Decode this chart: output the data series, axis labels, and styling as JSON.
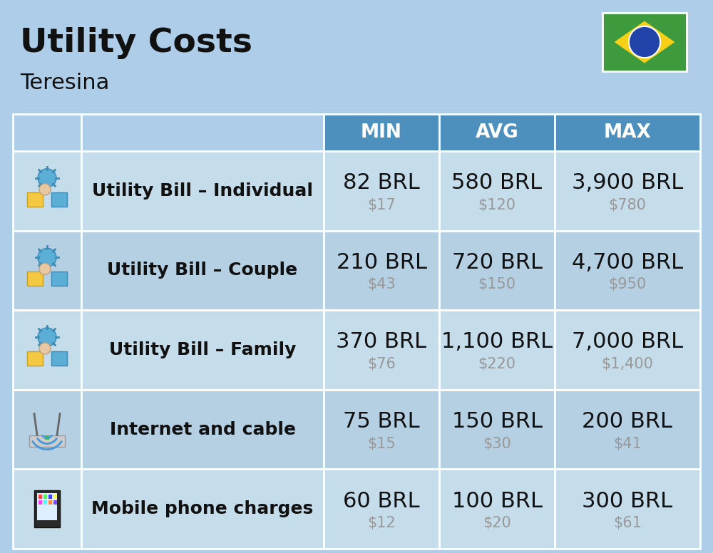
{
  "title": "Utility Costs",
  "subtitle": "Teresina",
  "background_color": "#aecde8",
  "header_bg_color": "#4d8fbd",
  "header_text_color": "#ffffff",
  "row_bg_color_1": "#c5dcea",
  "row_bg_color_2": "#b5cfe3",
  "label_text_color": "#111111",
  "value_text_color": "#111111",
  "usd_text_color": "#999999",
  "title_fontsize": 34,
  "subtitle_fontsize": 22,
  "header_fontsize": 19,
  "label_fontsize": 18,
  "value_fontsize": 22,
  "usd_fontsize": 15,
  "columns": [
    "MIN",
    "AVG",
    "MAX"
  ],
  "rows": [
    {
      "label": "Utility Bill – Individual",
      "min_brl": "82 BRL",
      "min_usd": "$17",
      "avg_brl": "580 BRL",
      "avg_usd": "$120",
      "max_brl": "3,900 BRL",
      "max_usd": "$780"
    },
    {
      "label": "Utility Bill – Couple",
      "min_brl": "210 BRL",
      "min_usd": "$43",
      "avg_brl": "720 BRL",
      "avg_usd": "$150",
      "max_brl": "4,700 BRL",
      "max_usd": "$950"
    },
    {
      "label": "Utility Bill – Family",
      "min_brl": "370 BRL",
      "min_usd": "$76",
      "avg_brl": "1,100 BRL",
      "avg_usd": "$220",
      "max_brl": "7,000 BRL",
      "max_usd": "$1,400"
    },
    {
      "label": "Internet and cable",
      "min_brl": "75 BRL",
      "min_usd": "$15",
      "avg_brl": "150 BRL",
      "avg_usd": "$30",
      "max_brl": "200 BRL",
      "max_usd": "$41"
    },
    {
      "label": "Mobile phone charges",
      "min_brl": "60 BRL",
      "min_usd": "$12",
      "avg_brl": "100 BRL",
      "avg_usd": "$20",
      "max_brl": "300 BRL",
      "max_usd": "$61"
    }
  ],
  "border_color": "#ffffff",
  "flag_green": "#3d9a3d",
  "flag_yellow": "#f5d016",
  "flag_blue": "#2244aa",
  "flag_white": "#ffffff"
}
